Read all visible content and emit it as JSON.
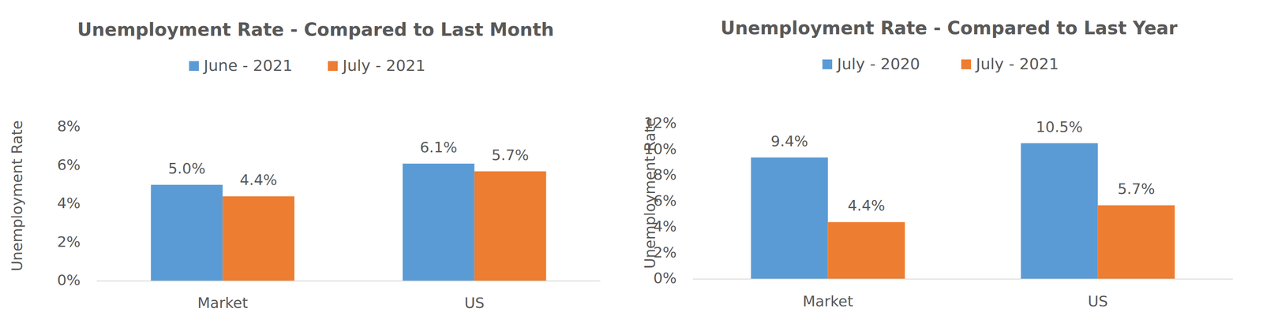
{
  "chart_data": [
    {
      "type": "bar",
      "title": "Unemployment Rate - Compared to Last Month",
      "y_label": "Unemployment Rate",
      "categories": [
        "Market",
        "US"
      ],
      "series": [
        {
          "name": "June - 2021",
          "color": "#5b9bd5",
          "values": [
            5.0,
            6.1
          ],
          "value_labels": [
            "5.0%",
            "6.1%"
          ]
        },
        {
          "name": "July - 2021",
          "color": "#ed7d31",
          "values": [
            4.4,
            5.7
          ],
          "value_labels": [
            "4.4%",
            "5.7%"
          ]
        }
      ],
      "ylim": [
        0,
        8
      ],
      "yticks": [
        {
          "value": 0,
          "label": "0%"
        },
        {
          "value": 2,
          "label": "2%"
        },
        {
          "value": 4,
          "label": "4%"
        },
        {
          "value": 6,
          "label": "6%"
        },
        {
          "value": 8,
          "label": "8%"
        }
      ],
      "grid": false,
      "legend": "top",
      "data_labels": true
    },
    {
      "type": "bar",
      "title": "Unemployment Rate - Compared to Last Year",
      "y_label": "Unemployment Rate",
      "categories": [
        "Market",
        "US"
      ],
      "series": [
        {
          "name": "July - 2020",
          "color": "#5b9bd5",
          "values": [
            9.4,
            10.5
          ],
          "value_labels": [
            "9.4%",
            "10.5%"
          ]
        },
        {
          "name": "July - 2021",
          "color": "#ed7d31",
          "values": [
            4.4,
            5.7
          ],
          "value_labels": [
            "4.4%",
            "5.7%"
          ]
        }
      ],
      "ylim": [
        0,
        12
      ],
      "yticks": [
        {
          "value": 0,
          "label": "0%"
        },
        {
          "value": 2,
          "label": "2%"
        },
        {
          "value": 4,
          "label": "4%"
        },
        {
          "value": 6,
          "label": "6%"
        },
        {
          "value": 8,
          "label": "8%"
        },
        {
          "value": 10,
          "label": "10%"
        },
        {
          "value": 12,
          "label": "12%"
        }
      ],
      "grid": false,
      "legend": "top",
      "data_labels": true
    }
  ]
}
